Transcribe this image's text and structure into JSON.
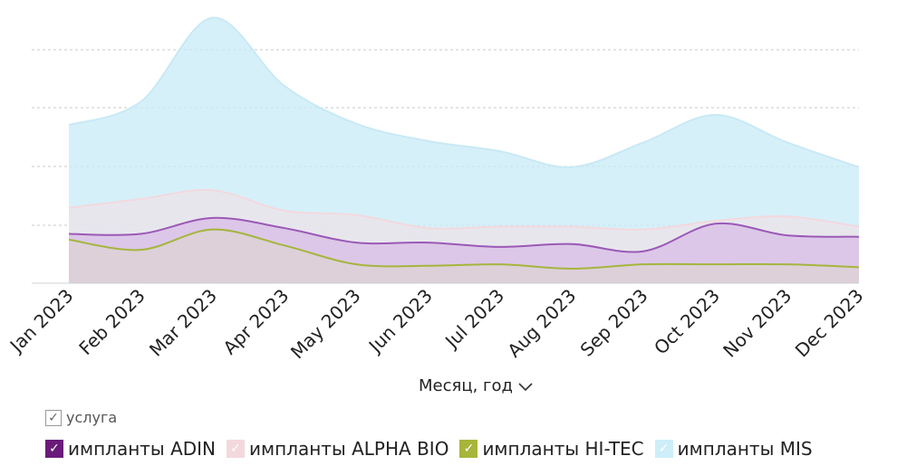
{
  "chart_data": {
    "type": "area",
    "categories": [
      "Jan 2023",
      "Feb 2023",
      "Mar 2023",
      "Apr 2023",
      "May 2023",
      "Jun 2023",
      "Jul 2023",
      "Aug 2023",
      "Sep 2023",
      "Oct 2023",
      "Nov 2023",
      "Dec 2023"
    ],
    "series": [
      {
        "name": "импланты ADIN",
        "color": "#9b59b6",
        "fill": "#d8bfe6",
        "values": [
          17,
          17,
          22.5,
          19,
          14,
          14,
          12.5,
          13.5,
          11,
          20.5,
          16.5,
          16
        ]
      },
      {
        "name": "импланты ALPHA BIO",
        "color": "#f2d9de",
        "fill": "#ece4ea",
        "values": [
          26,
          29,
          32,
          25,
          23.5,
          19,
          19.5,
          19.5,
          18.5,
          21.5,
          23,
          19.5
        ]
      },
      {
        "name": "импланты HI-TEC",
        "color": "#a5b53d",
        "fill": "#ddd2d4",
        "values": [
          15,
          11.5,
          18.5,
          13,
          6.5,
          6,
          6.5,
          5,
          6.5,
          6.5,
          6.5,
          5.5
        ]
      },
      {
        "name": "импланты MIS",
        "color": "#c8e9f5",
        "fill": "#ccecf7",
        "values": [
          54.5,
          62.5,
          91.5,
          68,
          55,
          49,
          45.5,
          40,
          48.5,
          58,
          48.5,
          40
        ]
      }
    ],
    "ylim": [
      0,
      92
    ],
    "grid": true,
    "xlabel": "Месяц, год",
    "legend_position": "bottom-left",
    "legend_title": "услуга"
  }
}
